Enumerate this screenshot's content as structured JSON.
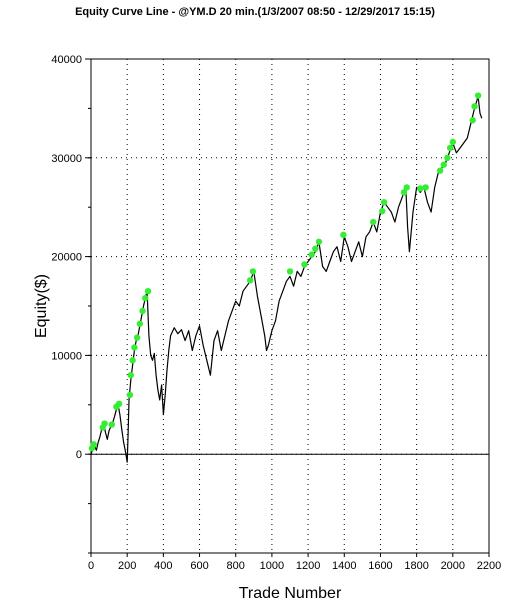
{
  "chart_data": {
    "type": "line",
    "title": "Equity Curve Line - @YM.D 20 min.(1/3/2007 08:50 - 12/29/2017 15:15)",
    "xlabel": "Trade Number",
    "ylabel": "Equity($)",
    "xlim": [
      0,
      2200
    ],
    "ylim": [
      -10000,
      40000
    ],
    "xticks": [
      0,
      200,
      400,
      600,
      800,
      1000,
      1200,
      1400,
      1600,
      1800,
      2000,
      2200
    ],
    "yticks": [
      0,
      10000,
      20000,
      30000,
      40000
    ],
    "grid": true,
    "line_color": "#000000",
    "marker_color": "#33ee33",
    "series": [
      {
        "values": [
          [
            0,
            0
          ],
          [
            10,
            500
          ],
          [
            20,
            800
          ],
          [
            30,
            400
          ],
          [
            40,
            1200
          ],
          [
            50,
            1800
          ],
          [
            60,
            2600
          ],
          [
            70,
            3000
          ],
          [
            80,
            2200
          ],
          [
            90,
            1500
          ],
          [
            100,
            2400
          ],
          [
            110,
            2800
          ],
          [
            120,
            3200
          ],
          [
            130,
            3800
          ],
          [
            140,
            4500
          ],
          [
            150,
            5000
          ],
          [
            160,
            4000
          ],
          [
            170,
            2500
          ],
          [
            180,
            1200
          ],
          [
            190,
            300
          ],
          [
            200,
            -800
          ],
          [
            205,
            2000
          ],
          [
            210,
            5500
          ],
          [
            220,
            7500
          ],
          [
            230,
            9000
          ],
          [
            240,
            10500
          ],
          [
            250,
            11500
          ],
          [
            260,
            12000
          ],
          [
            270,
            13000
          ],
          [
            280,
            14000
          ],
          [
            290,
            15000
          ],
          [
            300,
            15800
          ],
          [
            310,
            16500
          ],
          [
            320,
            12000
          ],
          [
            330,
            10000
          ],
          [
            340,
            9500
          ],
          [
            350,
            10200
          ],
          [
            360,
            8000
          ],
          [
            370,
            6500
          ],
          [
            380,
            5500
          ],
          [
            390,
            7000
          ],
          [
            400,
            4000
          ],
          [
            410,
            6000
          ],
          [
            420,
            8500
          ],
          [
            430,
            10500
          ],
          [
            440,
            12000
          ],
          [
            460,
            12800
          ],
          [
            480,
            12200
          ],
          [
            500,
            12600
          ],
          [
            520,
            11500
          ],
          [
            540,
            12500
          ],
          [
            560,
            10500
          ],
          [
            580,
            12000
          ],
          [
            600,
            13000
          ],
          [
            620,
            11000
          ],
          [
            640,
            9500
          ],
          [
            660,
            8000
          ],
          [
            680,
            11500
          ],
          [
            700,
            12500
          ],
          [
            720,
            10500
          ],
          [
            740,
            12000
          ],
          [
            760,
            13500
          ],
          [
            780,
            14500
          ],
          [
            800,
            15500
          ],
          [
            820,
            15000
          ],
          [
            840,
            16500
          ],
          [
            860,
            17000
          ],
          [
            880,
            17500
          ],
          [
            900,
            18500
          ],
          [
            920,
            16000
          ],
          [
            940,
            14000
          ],
          [
            960,
            12000
          ],
          [
            970,
            10500
          ],
          [
            980,
            11000
          ],
          [
            1000,
            12500
          ],
          [
            1020,
            13500
          ],
          [
            1040,
            15500
          ],
          [
            1060,
            16500
          ],
          [
            1080,
            17500
          ],
          [
            1100,
            18000
          ],
          [
            1120,
            17000
          ],
          [
            1140,
            18500
          ],
          [
            1160,
            18000
          ],
          [
            1180,
            19000
          ],
          [
            1200,
            19500
          ],
          [
            1220,
            20000
          ],
          [
            1240,
            20500
          ],
          [
            1260,
            21500
          ],
          [
            1280,
            19000
          ],
          [
            1300,
            18500
          ],
          [
            1320,
            19500
          ],
          [
            1340,
            20500
          ],
          [
            1360,
            21000
          ],
          [
            1380,
            19500
          ],
          [
            1400,
            22000
          ],
          [
            1420,
            21000
          ],
          [
            1440,
            19500
          ],
          [
            1460,
            20500
          ],
          [
            1480,
            21500
          ],
          [
            1500,
            20000
          ],
          [
            1520,
            22000
          ],
          [
            1540,
            22500
          ],
          [
            1560,
            23500
          ],
          [
            1580,
            22500
          ],
          [
            1600,
            24500
          ],
          [
            1620,
            25500
          ],
          [
            1640,
            25000
          ],
          [
            1660,
            24500
          ],
          [
            1680,
            23500
          ],
          [
            1700,
            25000
          ],
          [
            1720,
            26000
          ],
          [
            1740,
            27000
          ],
          [
            1750,
            23000
          ],
          [
            1760,
            20500
          ],
          [
            1780,
            24500
          ],
          [
            1800,
            27000
          ],
          [
            1820,
            26500
          ],
          [
            1840,
            27000
          ],
          [
            1860,
            25500
          ],
          [
            1880,
            24500
          ],
          [
            1900,
            27000
          ],
          [
            1920,
            28500
          ],
          [
            1940,
            29000
          ],
          [
            1960,
            29500
          ],
          [
            1980,
            30500
          ],
          [
            2000,
            31500
          ],
          [
            2020,
            30500
          ],
          [
            2040,
            31000
          ],
          [
            2060,
            31500
          ],
          [
            2080,
            32000
          ],
          [
            2100,
            33500
          ],
          [
            2120,
            35000
          ],
          [
            2140,
            36200
          ],
          [
            2150,
            34500
          ],
          [
            2160,
            34000
          ]
        ],
        "highs": [
          [
            5,
            600
          ],
          [
            15,
            1000
          ],
          [
            65,
            2700
          ],
          [
            75,
            3100
          ],
          [
            115,
            3000
          ],
          [
            140,
            4800
          ],
          [
            155,
            5100
          ],
          [
            215,
            6000
          ],
          [
            220,
            8000
          ],
          [
            230,
            9500
          ],
          [
            240,
            10800
          ],
          [
            255,
            11800
          ],
          [
            270,
            13200
          ],
          [
            285,
            14500
          ],
          [
            300,
            15800
          ],
          [
            315,
            16500
          ],
          [
            880,
            17600
          ],
          [
            895,
            18500
          ],
          [
            1100,
            18500
          ],
          [
            1180,
            19200
          ],
          [
            1220,
            20200
          ],
          [
            1240,
            20800
          ],
          [
            1260,
            21500
          ],
          [
            1395,
            22200
          ],
          [
            1560,
            23500
          ],
          [
            1610,
            24600
          ],
          [
            1620,
            25500
          ],
          [
            1730,
            26500
          ],
          [
            1745,
            27000
          ],
          [
            1820,
            26900
          ],
          [
            1850,
            27000
          ],
          [
            1930,
            28700
          ],
          [
            1950,
            29300
          ],
          [
            1970,
            30000
          ],
          [
            1985,
            31000
          ],
          [
            2000,
            31600
          ],
          [
            2110,
            33800
          ],
          [
            2120,
            35200
          ],
          [
            2140,
            36300
          ]
        ]
      }
    ]
  }
}
